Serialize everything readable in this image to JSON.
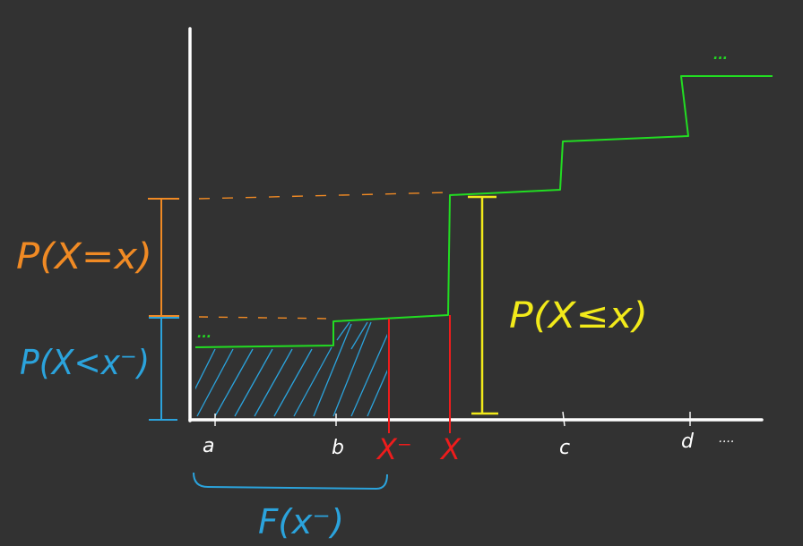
{
  "colors": {
    "background": "#323232",
    "axes": "#ffffff",
    "cdf": "#22dd22",
    "pmf_bracket": "#f08a24",
    "cdf_left": "#2ba3dc",
    "cdf_at_x": "#f2ea1a",
    "x_marker": "#ee1c1c",
    "hatch": "#2ba3dc"
  },
  "labels": {
    "p_equal": "P(X=x)",
    "p_less": "P(X<x⁻)",
    "p_le": "P(X≤x)",
    "f_left": "F(x⁻)",
    "x_minus": "X⁻",
    "x_point": "X",
    "tick_a": "a",
    "tick_b": "b",
    "tick_c": "c",
    "tick_d": "d",
    "ellipsis": "....",
    "dots_left": "...",
    "dots_right": "..."
  }
}
